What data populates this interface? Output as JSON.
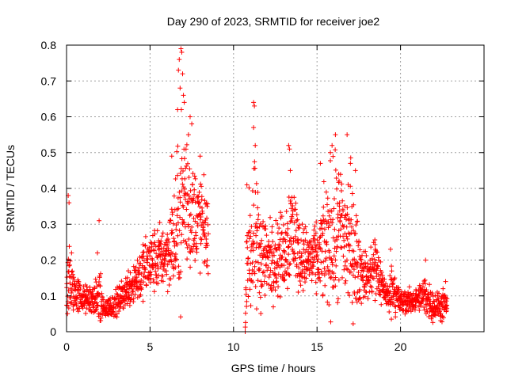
{
  "chart_data": {
    "type": "scatter",
    "title": "Day 290 of 2023, SRMTID for receiver joe2",
    "xlabel": "GPS time / hours",
    "ylabel": "SRMTID / TECUs",
    "xlim": [
      0,
      25
    ],
    "ylim": [
      0,
      0.8
    ],
    "xticks": [
      0,
      5,
      10,
      15,
      20
    ],
    "yticks": [
      0,
      0.1,
      0.2,
      0.3,
      0.4,
      0.5,
      0.6,
      0.7,
      0.8
    ],
    "xtick_labels": [
      "0",
      "5",
      "10",
      "15",
      "20"
    ],
    "ytick_labels": [
      "0",
      "0.1",
      "0.2",
      "0.3",
      "0.4",
      "0.5",
      "0.6",
      "0.7",
      "0.8"
    ],
    "grid": true,
    "marker": "+",
    "color": "#ff0000",
    "series": [
      {
        "name": "SRMTID",
        "envelope": [
          {
            "t": 0.0,
            "center": 0.09,
            "spread": 0.05
          },
          {
            "t": 0.1,
            "center": 0.17,
            "spread": 0.2
          },
          {
            "t": 0.3,
            "center": 0.12,
            "spread": 0.09
          },
          {
            "t": 1.0,
            "center": 0.09,
            "spread": 0.05
          },
          {
            "t": 1.8,
            "center": 0.09,
            "spread": 0.06
          },
          {
            "t": 2.0,
            "center": 0.1,
            "spread": 0.2
          },
          {
            "t": 2.2,
            "center": 0.06,
            "spread": 0.03
          },
          {
            "t": 3.0,
            "center": 0.08,
            "spread": 0.05
          },
          {
            "t": 3.5,
            "center": 0.11,
            "spread": 0.06
          },
          {
            "t": 4.0,
            "center": 0.14,
            "spread": 0.09
          },
          {
            "t": 5.0,
            "center": 0.19,
            "spread": 0.12
          },
          {
            "t": 6.0,
            "center": 0.22,
            "spread": 0.12
          },
          {
            "t": 6.5,
            "center": 0.26,
            "spread": 0.22
          },
          {
            "t": 7.0,
            "center": 0.38,
            "spread": 0.36
          },
          {
            "t": 7.5,
            "center": 0.33,
            "spread": 0.2
          },
          {
            "t": 8.0,
            "center": 0.31,
            "spread": 0.18
          },
          {
            "t": 8.5,
            "center": 0.27,
            "spread": 0.14
          },
          {
            "t": 10.7,
            "center": 0.0,
            "spread": 0.01
          },
          {
            "t": 10.8,
            "center": 0.22,
            "spread": 0.16
          },
          {
            "t": 11.2,
            "center": 0.24,
            "spread": 0.3
          },
          {
            "t": 12.0,
            "center": 0.2,
            "spread": 0.14
          },
          {
            "t": 13.0,
            "center": 0.22,
            "spread": 0.15
          },
          {
            "t": 13.5,
            "center": 0.3,
            "spread": 0.22
          },
          {
            "t": 14.0,
            "center": 0.21,
            "spread": 0.12
          },
          {
            "t": 15.0,
            "center": 0.2,
            "spread": 0.12
          },
          {
            "t": 15.8,
            "center": 0.26,
            "spread": 0.27
          },
          {
            "t": 16.5,
            "center": 0.27,
            "spread": 0.27
          },
          {
            "t": 17.0,
            "center": 0.25,
            "spread": 0.28
          },
          {
            "t": 17.5,
            "center": 0.18,
            "spread": 0.14
          },
          {
            "t": 18.0,
            "center": 0.15,
            "spread": 0.07
          },
          {
            "t": 18.5,
            "center": 0.18,
            "spread": 0.15
          },
          {
            "t": 19.0,
            "center": 0.12,
            "spread": 0.05
          },
          {
            "t": 19.3,
            "center": 0.09,
            "spread": 0.06
          },
          {
            "t": 19.5,
            "center": 0.13,
            "spread": 0.1
          },
          {
            "t": 20.0,
            "center": 0.08,
            "spread": 0.05
          },
          {
            "t": 21.0,
            "center": 0.09,
            "spread": 0.04
          },
          {
            "t": 21.5,
            "center": 0.1,
            "spread": 0.08
          },
          {
            "t": 22.0,
            "center": 0.07,
            "spread": 0.05
          },
          {
            "t": 22.8,
            "center": 0.07,
            "spread": 0.06
          }
        ],
        "peaks": [
          {
            "t": 0.1,
            "value": 0.38
          },
          {
            "t": 0.15,
            "value": 0.36
          },
          {
            "t": 0.3,
            "value": 0.22
          },
          {
            "t": 1.85,
            "value": 0.22
          },
          {
            "t": 1.95,
            "value": 0.31
          },
          {
            "t": 6.7,
            "value": 0.73
          },
          {
            "t": 6.75,
            "value": 0.76
          },
          {
            "t": 6.85,
            "value": 0.79
          },
          {
            "t": 6.9,
            "value": 0.78
          },
          {
            "t": 6.95,
            "value": 0.72
          },
          {
            "t": 6.8,
            "value": 0.68
          },
          {
            "t": 6.65,
            "value": 0.62
          },
          {
            "t": 7.0,
            "value": 0.66
          },
          {
            "t": 7.05,
            "value": 0.64
          },
          {
            "t": 7.4,
            "value": 0.6
          },
          {
            "t": 7.5,
            "value": 0.58
          },
          {
            "t": 7.3,
            "value": 0.55
          },
          {
            "t": 6.3,
            "value": 0.49
          },
          {
            "t": 8.0,
            "value": 0.49
          },
          {
            "t": 11.2,
            "value": 0.64
          },
          {
            "t": 11.25,
            "value": 0.63
          },
          {
            "t": 11.2,
            "value": 0.57
          },
          {
            "t": 11.3,
            "value": 0.52
          },
          {
            "t": 10.8,
            "value": 0.41
          },
          {
            "t": 13.3,
            "value": 0.52
          },
          {
            "t": 13.35,
            "value": 0.51
          },
          {
            "t": 13.4,
            "value": 0.45
          },
          {
            "t": 15.8,
            "value": 0.5
          },
          {
            "t": 16.1,
            "value": 0.55
          },
          {
            "t": 15.9,
            "value": 0.52
          },
          {
            "t": 16.3,
            "value": 0.44
          },
          {
            "t": 16.8,
            "value": 0.55
          },
          {
            "t": 17.0,
            "value": 0.47
          },
          {
            "t": 17.3,
            "value": 0.45
          },
          {
            "t": 15.2,
            "value": 0.47
          },
          {
            "t": 19.4,
            "value": 0.23
          },
          {
            "t": 21.5,
            "value": 0.2
          },
          {
            "t": 22.7,
            "value": 0.14
          },
          {
            "t": 10.7,
            "value": 0.0
          }
        ]
      }
    ]
  }
}
